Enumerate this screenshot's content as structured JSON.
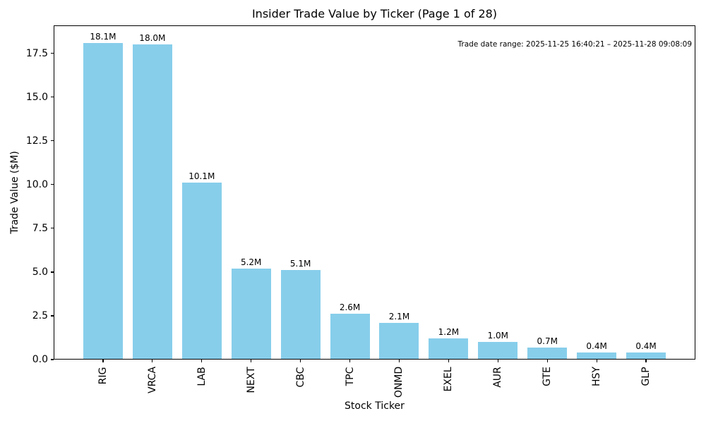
{
  "chart_data": {
    "type": "bar",
    "title": "Insider Trade Value by Ticker (Page 1 of 28)",
    "xlabel": "Stock Ticker",
    "ylabel": "Trade Value ($M)",
    "categories": [
      "RIG",
      "VRCA",
      "LAB",
      "NEXT",
      "CBC",
      "TPC",
      "ONMD",
      "EXEL",
      "AUR",
      "GTE",
      "HSY",
      "GLP"
    ],
    "values": [
      18.1,
      18.0,
      10.1,
      5.2,
      5.1,
      2.6,
      2.1,
      1.2,
      1.0,
      0.7,
      0.4,
      0.4
    ],
    "bar_labels": [
      "18.1M",
      "18.0M",
      "10.1M",
      "5.2M",
      "5.1M",
      "2.6M",
      "2.1M",
      "1.2M",
      "1.0M",
      "0.7M",
      "0.4M",
      "0.4M"
    ],
    "yticks": [
      0,
      2.5,
      5,
      7.5,
      10,
      12.5,
      15,
      17.5
    ],
    "ytick_labels": [
      "0.0",
      "2.5",
      "5.0",
      "7.5",
      "10.0",
      "12.5",
      "15.0",
      "17.5"
    ],
    "ylim": [
      0,
      19.1
    ],
    "xtick_rotation": 90,
    "grid": false,
    "bar_color": "#87CEEB",
    "annotation": "Trade date range: 2025-11-25 16:40:21 – 2025-11-28 09:08:09",
    "annotation_position": "top-right"
  }
}
